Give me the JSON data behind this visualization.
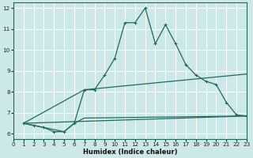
{
  "xlabel": "Humidex (Indice chaleur)",
  "xlim": [
    0,
    23
  ],
  "ylim": [
    5.75,
    12.25
  ],
  "yticks": [
    6,
    7,
    8,
    9,
    10,
    11,
    12
  ],
  "xticks": [
    0,
    1,
    2,
    3,
    4,
    5,
    6,
    7,
    8,
    9,
    10,
    11,
    12,
    13,
    14,
    15,
    16,
    17,
    18,
    19,
    20,
    21,
    22,
    23
  ],
  "bg_color": "#cde8e8",
  "grid_color": "#ffffff",
  "line_color": "#1e6b5e",
  "main_line": {
    "x": [
      1,
      2,
      3,
      4,
      5,
      6,
      7,
      8,
      9,
      10,
      11,
      12,
      13,
      14,
      15,
      16,
      17,
      18,
      19,
      20,
      21,
      22,
      23
    ],
    "y": [
      6.5,
      6.4,
      6.3,
      6.1,
      6.1,
      6.5,
      8.1,
      8.1,
      8.8,
      9.6,
      11.3,
      11.3,
      12.0,
      10.3,
      11.2,
      10.3,
      9.3,
      8.8,
      8.5,
      8.35,
      7.5,
      6.9,
      6.85
    ]
  },
  "upper_line": {
    "x": [
      1,
      7,
      23
    ],
    "y": [
      6.5,
      8.1,
      8.85
    ]
  },
  "lower_line": {
    "x": [
      1,
      23
    ],
    "y": [
      6.5,
      6.85
    ]
  },
  "mid_line": {
    "x": [
      1,
      5,
      6,
      7,
      23
    ],
    "y": [
      6.5,
      6.1,
      6.5,
      6.75,
      6.85
    ]
  }
}
